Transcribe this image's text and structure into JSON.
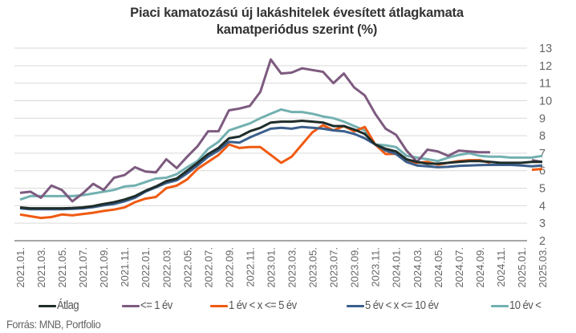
{
  "chart_data": {
    "type": "line",
    "title": "Piaci kamatozású új lakáshitelek évesített átlagkamata",
    "subtitle": "kamatperiódus szerint (%)",
    "xlabel": "",
    "ylabel": "",
    "ylim": [
      2,
      13
    ],
    "yticks": [
      "13",
      "12",
      "11",
      "10",
      "9",
      "8",
      "7",
      "6",
      "5",
      "4",
      "3",
      "2"
    ],
    "grid": true,
    "legend_position": "bottom",
    "x": [
      "2021.01.",
      "2021.02.",
      "2021.03.",
      "2021.04.",
      "2021.05.",
      "2021.06.",
      "2021.07.",
      "2021.08.",
      "2021.09.",
      "2021.10.",
      "2021.11.",
      "2021.12.",
      "2022.01.",
      "2022.02.",
      "2022.03.",
      "2022.04.",
      "2022.05.",
      "2022.06.",
      "2022.07.",
      "2022.08.",
      "2022.09.",
      "2022.10.",
      "2022.11.",
      "2022.12.",
      "2023.01.",
      "2023.02.",
      "2023.03.",
      "2023.04.",
      "2023.05.",
      "2023.06.",
      "2023.07.",
      "2023.08.",
      "2023.09.",
      "2023.10.",
      "2023.11.",
      "2023.12.",
      "2024.01.",
      "2024.02.",
      "2024.03.",
      "2024.04.",
      "2024.05.",
      "2024.06.",
      "2024.07.",
      "2024.08.",
      "2024.09.",
      "2024.10.",
      "2024.11.",
      "2024.12.",
      "2025.01.",
      "2025.02.",
      "2025.03."
    ],
    "xtick_labels": [
      "2021.01.",
      "2021.03.",
      "2021.05.",
      "2021.07.",
      "2021.09.",
      "2021.11.",
      "2022.01.",
      "2022.03.",
      "2022.05.",
      "2022.07.",
      "2022.09.",
      "2022.11.",
      "2023.01.",
      "2023.03.",
      "2023.05.",
      "2023.07.",
      "2023.09.",
      "2023.11.",
      "2024.01.",
      "2024.03.",
      "2024.05.",
      "2024.07.",
      "2024.09.",
      "2024.11.",
      "2025.01.",
      "2025.03."
    ],
    "series": [
      {
        "name": "Átlag",
        "color": "#1f2d2a",
        "values": [
          3.9,
          3.85,
          3.85,
          3.85,
          3.85,
          3.87,
          3.9,
          3.98,
          4.1,
          4.2,
          4.35,
          4.55,
          4.85,
          5.1,
          5.4,
          5.55,
          6.0,
          6.45,
          6.95,
          7.3,
          7.85,
          7.95,
          8.25,
          8.45,
          8.75,
          8.8,
          8.8,
          8.85,
          8.8,
          8.75,
          8.55,
          8.55,
          8.35,
          8.1,
          7.5,
          7.25,
          7.1,
          6.65,
          6.5,
          6.4,
          6.4,
          6.45,
          6.5,
          6.55,
          6.55,
          6.5,
          6.45,
          6.45,
          6.45,
          6.5,
          6.5
        ]
      },
      {
        "name": "<= 1 év",
        "color": "#7d5a7f",
        "values": [
          4.73,
          4.8,
          4.45,
          5.15,
          4.9,
          4.25,
          4.7,
          5.25,
          4.9,
          5.6,
          5.75,
          6.2,
          5.95,
          5.9,
          6.65,
          6.15,
          6.8,
          7.4,
          8.25,
          8.25,
          9.45,
          9.55,
          9.7,
          10.5,
          12.35,
          11.55,
          11.6,
          11.85,
          11.75,
          11.65,
          11.0,
          11.55,
          10.75,
          10.3,
          9.25,
          8.4,
          8.05,
          7.15,
          6.5,
          7.2,
          7.1,
          6.85,
          7.15,
          7.1,
          7.05,
          7.05,
          null,
          null,
          null,
          6.6,
          6.5
        ]
      },
      {
        "name": "1 év < x <= 5 év",
        "color": "#f05a12",
        "values": [
          3.5,
          3.4,
          3.3,
          3.35,
          3.5,
          3.45,
          3.52,
          3.6,
          3.7,
          3.78,
          3.9,
          4.2,
          4.4,
          4.5,
          5.0,
          5.15,
          5.5,
          6.1,
          6.5,
          6.9,
          7.5,
          7.3,
          7.35,
          7.35,
          6.9,
          6.45,
          6.8,
          7.5,
          8.2,
          8.6,
          8.3,
          8.55,
          8.25,
          8.5,
          7.5,
          6.95,
          6.97,
          6.5,
          6.45,
          6.5,
          6.35,
          6.45,
          6.55,
          6.6,
          6.6,
          6.45,
          null,
          null,
          null,
          6.05,
          6.1
        ]
      },
      {
        "name": "5 év  < x <=  10 év",
        "color": "#3a5f8c",
        "values": [
          3.85,
          3.8,
          3.8,
          3.8,
          3.8,
          3.82,
          3.85,
          3.92,
          4.02,
          4.1,
          4.25,
          4.45,
          4.8,
          5.05,
          5.3,
          5.45,
          5.85,
          6.3,
          6.8,
          7.15,
          7.65,
          7.6,
          7.9,
          8.15,
          8.4,
          8.45,
          8.4,
          8.5,
          8.45,
          8.4,
          8.3,
          8.25,
          8.1,
          7.85,
          7.5,
          7.15,
          6.95,
          6.5,
          6.3,
          6.25,
          6.2,
          6.22,
          6.27,
          6.3,
          6.32,
          6.33,
          6.33,
          6.33,
          6.3,
          6.25,
          6.3
        ]
      },
      {
        "name": "10 év <",
        "color": "#73b0b0",
        "values": [
          4.35,
          4.55,
          4.55,
          4.55,
          4.55,
          4.55,
          4.6,
          4.7,
          4.8,
          4.9,
          5.1,
          5.15,
          5.35,
          5.55,
          5.6,
          5.8,
          6.2,
          6.55,
          7.25,
          7.65,
          8.3,
          8.5,
          8.7,
          9.0,
          9.25,
          9.5,
          9.35,
          9.35,
          9.25,
          9.1,
          9.0,
          8.8,
          8.55,
          8.3,
          7.5,
          7.45,
          7.35,
          6.85,
          6.75,
          6.65,
          6.55,
          6.75,
          6.9,
          7.0,
          6.85,
          6.8,
          6.8,
          6.75,
          6.75,
          6.75,
          6.85
        ]
      }
    ]
  },
  "source": "Forrás: MNB, Portfolio"
}
